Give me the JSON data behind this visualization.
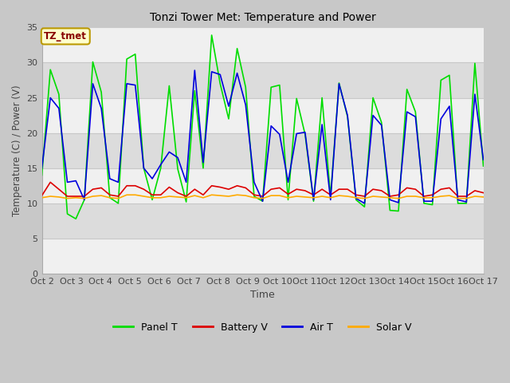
{
  "title": "Tonzi Tower Met: Temperature and Power",
  "xlabel": "Time",
  "ylabel": "Temperature (C) / Power (V)",
  "annotation": "TZ_tmet",
  "ylim": [
    0,
    35
  ],
  "yticks": [
    0,
    5,
    10,
    15,
    20,
    25,
    30,
    35
  ],
  "x_labels": [
    "Oct 2",
    "Oct 3",
    "Oct 4",
    "Oct 5",
    "Oct 6",
    "Oct 7",
    "Oct 8",
    "Oct 9",
    "Oct 10",
    "Oct 11",
    "Oct 12",
    "Oct 13",
    "Oct 14",
    "Oct 15",
    "Oct 16",
    "Oct 17"
  ],
  "fig_bg": "#c8c8c8",
  "plot_bg_light": "#f0f0f0",
  "plot_bg_dark": "#dcdcdc",
  "grid_color": "#c8c8c8",
  "panel_T_color": "#00dd00",
  "battery_V_color": "#dd0000",
  "air_T_color": "#0000dd",
  "solar_V_color": "#ffaa00",
  "panel_T": [
    14.0,
    29.0,
    25.5,
    8.5,
    7.8,
    10.5,
    30.1,
    25.8,
    10.8,
    10.0,
    30.5,
    31.2,
    15.0,
    10.5,
    15.0,
    26.7,
    14.9,
    10.2,
    26.0,
    15.0,
    33.9,
    27.0,
    22.0,
    32.0,
    26.5,
    11.0,
    10.3,
    26.5,
    26.8,
    10.5,
    24.9,
    19.8,
    10.3,
    25.0,
    11.0,
    27.1,
    22.3,
    10.5,
    9.5,
    25.0,
    21.5,
    9.0,
    8.9,
    26.2,
    23.0,
    10.0,
    9.8,
    27.5,
    28.2,
    10.0,
    10.0,
    29.9,
    15.3
  ],
  "battery_V": [
    11.1,
    13.0,
    12.0,
    11.0,
    11.0,
    11.0,
    12.0,
    12.2,
    11.2,
    11.0,
    12.5,
    12.5,
    12.0,
    11.2,
    11.2,
    12.3,
    11.5,
    11.0,
    12.0,
    11.2,
    12.5,
    12.3,
    12.0,
    12.5,
    12.2,
    11.2,
    11.0,
    12.0,
    12.2,
    11.3,
    12.0,
    11.8,
    11.2,
    12.0,
    11.2,
    12.0,
    12.0,
    11.2,
    11.0,
    12.0,
    11.8,
    11.0,
    11.2,
    12.2,
    12.0,
    11.0,
    11.2,
    12.0,
    12.2,
    11.0,
    11.0,
    11.8,
    11.5
  ],
  "air_T": [
    15.0,
    25.0,
    23.5,
    13.0,
    13.2,
    10.5,
    27.0,
    23.5,
    13.5,
    13.0,
    27.0,
    26.8,
    15.0,
    13.5,
    15.5,
    17.3,
    16.5,
    13.0,
    28.9,
    15.8,
    28.7,
    28.3,
    23.8,
    28.5,
    24.0,
    13.0,
    10.3,
    21.0,
    19.8,
    13.0,
    19.9,
    20.1,
    10.5,
    21.2,
    10.5,
    27.0,
    22.5,
    10.7,
    10.0,
    22.5,
    21.1,
    10.5,
    10.1,
    23.0,
    22.3,
    10.3,
    10.3,
    22.0,
    23.8,
    10.5,
    10.2,
    25.5,
    16.2
  ],
  "solar_V": [
    10.8,
    11.0,
    10.9,
    10.7,
    10.8,
    10.7,
    11.0,
    11.1,
    10.8,
    10.7,
    11.2,
    11.2,
    11.0,
    10.8,
    10.8,
    11.0,
    10.9,
    10.8,
    11.1,
    10.8,
    11.2,
    11.1,
    11.0,
    11.2,
    11.1,
    10.8,
    10.7,
    11.1,
    11.1,
    10.8,
    11.0,
    10.9,
    10.8,
    11.0,
    10.8,
    11.1,
    11.0,
    10.8,
    10.7,
    11.0,
    10.9,
    10.8,
    10.7,
    11.0,
    11.0,
    10.8,
    10.8,
    11.0,
    11.1,
    10.7,
    10.7,
    11.0,
    10.9
  ]
}
